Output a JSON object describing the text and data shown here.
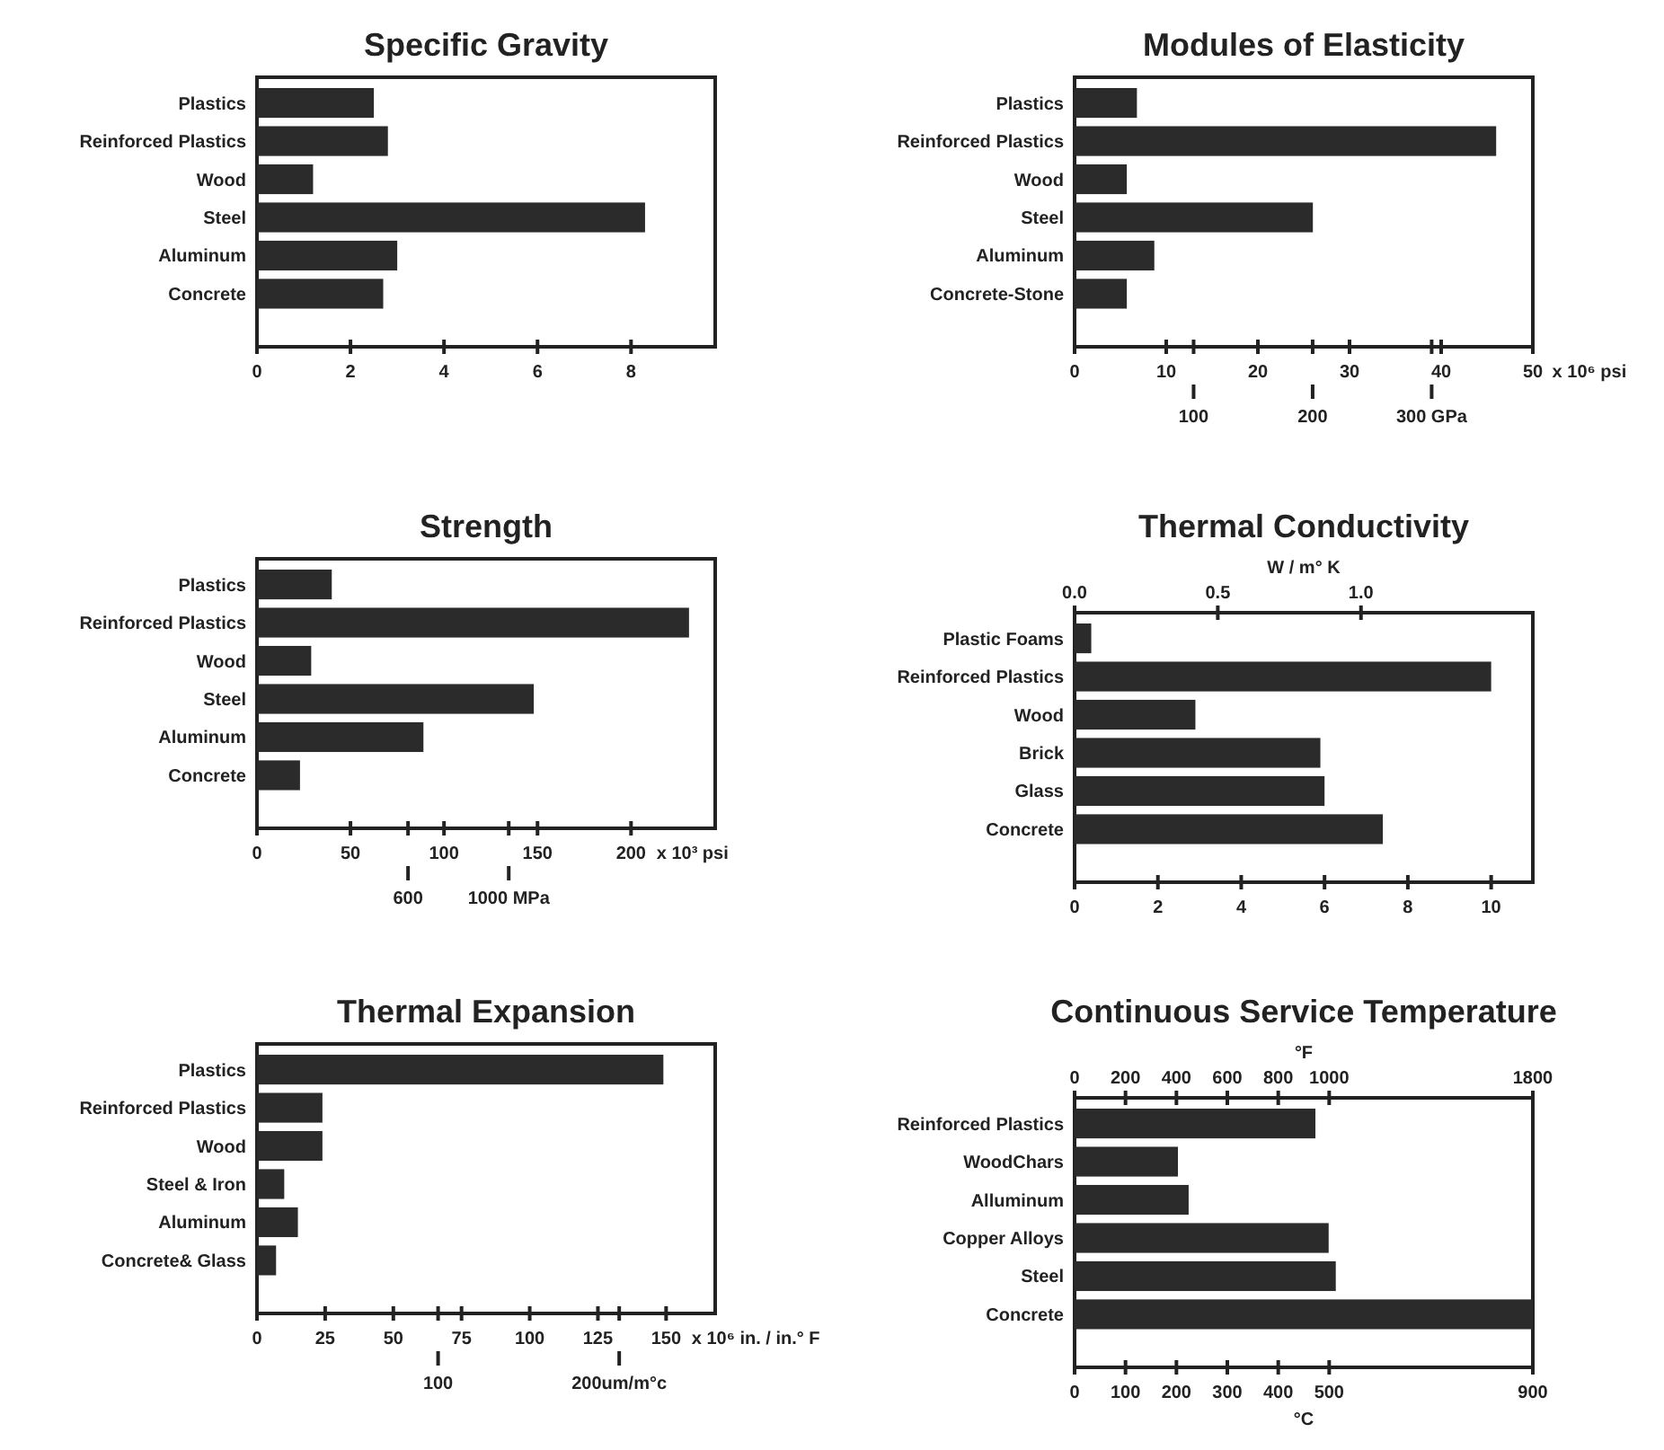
{
  "chart_data": [
    {
      "type": "bar",
      "orientation": "horizontal",
      "title": "Specific Gravity",
      "categories": [
        "Plastics",
        "Reinforced Plastics",
        "Wood",
        "Steel",
        "Aluminum",
        "Concrete"
      ],
      "values": [
        2.5,
        2.8,
        1.2,
        8.3,
        3.0,
        2.7
      ],
      "color": "#2b2b2b",
      "xlim": [
        0,
        9.8
      ],
      "xticks": [
        0,
        2,
        4,
        6,
        8
      ]
    },
    {
      "type": "bar",
      "orientation": "horizontal",
      "title": "Modules of Elasticity",
      "categories": [
        "Plastics",
        "Reinforced Plastics",
        "Wood",
        "Steel",
        "Aluminum",
        "Concrete-Stone"
      ],
      "values": [
        6.8,
        46,
        5.7,
        26,
        8.7,
        5.7
      ],
      "color": "#2b2b2b",
      "xlim": [
        0,
        50
      ],
      "xticks": [
        0,
        10,
        20,
        30,
        40,
        50
      ],
      "xlabel": "x 10⁶ psi",
      "x2lim": [
        0,
        385
      ],
      "x2ticks": [
        100,
        200,
        {
          "value": 300,
          "label": "300 GPa"
        }
      ]
    },
    {
      "type": "bar",
      "orientation": "horizontal",
      "title": "Strength",
      "categories": [
        "Plastics",
        "Reinforced Plastics",
        "Wood",
        "Steel",
        "Aluminum",
        "Concrete"
      ],
      "values": [
        40,
        231,
        29,
        148,
        89,
        23
      ],
      "color": "#2b2b2b",
      "xlim": [
        0,
        245
      ],
      "xticks": [
        0,
        50,
        100,
        150,
        200
      ],
      "xlabel": "x 10³ psi",
      "x2lim": [
        0,
        1820
      ],
      "x2ticks": [
        600,
        {
          "value": 1000,
          "label": "1000 MPa"
        }
      ]
    },
    {
      "type": "bar",
      "orientation": "horizontal",
      "title": "Thermal Conductivity",
      "categories": [
        "Plastic Foams",
        "Reinforced Plastics",
        "Wood",
        "Brick",
        "Glass",
        "Concrete"
      ],
      "values": [
        0.4,
        10,
        2.9,
        5.9,
        6,
        7.4
      ],
      "color": "#2b2b2b",
      "xlim": [
        0,
        11
      ],
      "xticks": [
        0,
        2,
        4,
        6,
        8,
        10
      ],
      "x2lim": [
        0,
        1.6
      ],
      "x2ticks": [
        {
          "value": 0,
          "label": "0.0"
        },
        0.5,
        {
          "value": 1,
          "label": "1.0"
        }
      ],
      "x2label": "W / m° K"
    },
    {
      "type": "bar",
      "orientation": "horizontal",
      "title": "Thermal Expansion",
      "categories": [
        "Plastics",
        "Reinforced Plastics",
        "Wood",
        "Steel & Iron",
        "Aluminum",
        "Concrete& Glass"
      ],
      "values": [
        149,
        24,
        24,
        10,
        15,
        7
      ],
      "color": "#2b2b2b",
      "xlim": [
        0,
        168
      ],
      "xticks": [
        0,
        25,
        50,
        75,
        100,
        125,
        150
      ],
      "xlabel": "x 10⁶ in. / in.° F",
      "x2lim": [
        0,
        253
      ],
      "x2ticks": [
        100,
        {
          "value": 200,
          "label": "200um/m°c"
        }
      ]
    },
    {
      "type": "bar",
      "orientation": "horizontal",
      "title": "Continuous Service Temperature",
      "categories": [
        "Reinforced Plastics",
        "WoodChars",
        "Alluminum",
        "Copper Alloys",
        "Steel",
        "Concrete"
      ],
      "values": [
        473,
        203,
        224,
        499,
        513,
        900
      ],
      "color": "#2b2b2b",
      "xlim": [
        0,
        900
      ],
      "xticks": [
        0,
        100,
        200,
        300,
        400,
        500,
        900
      ],
      "xlabel": "°C",
      "x2lim": [
        0,
        1800
      ],
      "x2ticks": [
        0,
        200,
        400,
        600,
        800,
        1000,
        1800
      ],
      "x2label": "°F"
    }
  ]
}
